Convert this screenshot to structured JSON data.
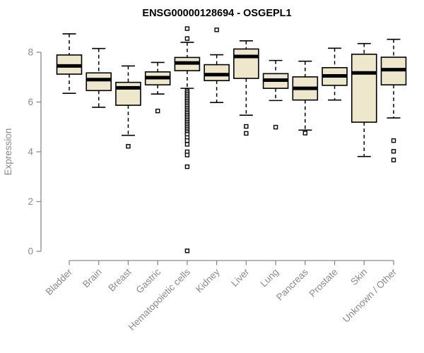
{
  "title": "ENSG00000128694 - OSGEPL1",
  "y_axis": {
    "label": "Expression",
    "tick_labels": [
      "0",
      "2",
      "4",
      "6",
      "8"
    ]
  },
  "colors": {
    "box_fill": "#EDE7CB",
    "box_stroke": "#000000",
    "median": "#000000",
    "whisker": "#000000",
    "outlier_fill": "#FFFFFF",
    "axis": "#8A8A8A",
    "tick_text": "#8A8A8A",
    "title_text": "#000000",
    "background": "#FFFFFF"
  },
  "chart_data": {
    "type": "boxplot",
    "title": "ENSG00000128694 - OSGEPL1",
    "xlabel": "",
    "ylabel": "Expression",
    "ylim": [
      0,
      8
    ],
    "y_ticks": [
      0,
      2,
      4,
      6,
      8
    ],
    "grid": false,
    "legend": "none",
    "categories": [
      "Bladder",
      "Brain",
      "Breast",
      "Gastric",
      "Hematopoietic cells",
      "Kidney",
      "Liver",
      "Lung",
      "Pancreas",
      "Prostate",
      "Skin",
      "Unknown / Other"
    ],
    "series": [
      {
        "category": "Bladder",
        "whisker_low": 6.35,
        "q1": 7.12,
        "median": 7.45,
        "q3": 7.89,
        "whisker_high": 8.74,
        "outliers": []
      },
      {
        "category": "Brain",
        "whisker_low": 5.79,
        "q1": 6.46,
        "median": 6.9,
        "q3": 7.17,
        "whisker_high": 8.15,
        "outliers": []
      },
      {
        "category": "Breast",
        "whisker_low": 4.66,
        "q1": 5.87,
        "median": 6.57,
        "q3": 6.79,
        "whisker_high": 7.45,
        "outliers": [
          4.22
        ]
      },
      {
        "category": "Gastric",
        "whisker_low": 6.32,
        "q1": 6.69,
        "median": 6.98,
        "q3": 7.21,
        "whisker_high": 7.59,
        "outliers": [
          5.64
        ]
      },
      {
        "category": "Hematopoietic cells",
        "whisker_low": 6.55,
        "q1": 7.26,
        "median": 7.57,
        "q3": 7.79,
        "whisker_high": 8.4,
        "outliers": [
          8.95,
          8.55,
          6.45,
          6.38,
          6.31,
          6.24,
          6.17,
          6.1,
          6.03,
          5.96,
          5.89,
          5.82,
          5.75,
          5.68,
          5.61,
          5.54,
          5.47,
          5.4,
          5.33,
          5.26,
          5.19,
          5.12,
          5.05,
          4.98,
          4.91,
          4.84,
          4.77,
          4.7,
          4.57,
          4.45,
          4.3,
          4.0,
          3.87,
          3.4,
          0.02
        ]
      },
      {
        "category": "Kidney",
        "whisker_low": 5.98,
        "q1": 6.86,
        "median": 7.1,
        "q3": 7.5,
        "whisker_high": 7.9,
        "outliers": [
          8.9
        ]
      },
      {
        "category": "Liver",
        "whisker_low": 5.47,
        "q1": 6.95,
        "median": 7.83,
        "q3": 8.13,
        "whisker_high": 8.46,
        "outliers": [
          5.02,
          4.74
        ]
      },
      {
        "category": "Lung",
        "whisker_low": 6.06,
        "q1": 6.55,
        "median": 6.88,
        "q3": 7.14,
        "whisker_high": 7.67,
        "outliers": [
          4.99
        ]
      },
      {
        "category": "Pancreas",
        "whisker_low": 4.87,
        "q1": 6.08,
        "median": 6.55,
        "q3": 7.01,
        "whisker_high": 7.64,
        "outliers": [
          4.75
        ]
      },
      {
        "category": "Prostate",
        "whisker_low": 6.08,
        "q1": 6.67,
        "median": 7.05,
        "q3": 7.38,
        "whisker_high": 8.16,
        "outliers": []
      },
      {
        "category": "Skin",
        "whisker_low": 3.81,
        "q1": 5.19,
        "median": 7.17,
        "q3": 7.92,
        "whisker_high": 8.35,
        "outliers": []
      },
      {
        "category": "Unknown / Other",
        "whisker_low": 5.36,
        "q1": 6.69,
        "median": 7.3,
        "q3": 7.8,
        "whisker_high": 8.52,
        "outliers": [
          4.45,
          4.02,
          3.67
        ]
      }
    ]
  }
}
